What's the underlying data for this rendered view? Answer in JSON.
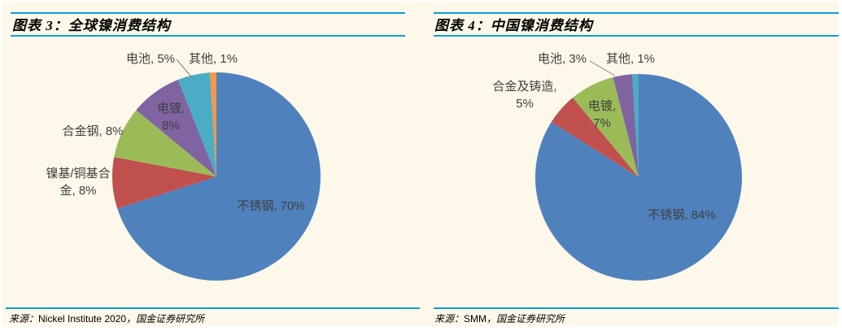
{
  "styles": {
    "background": "#FDF8E9",
    "rule_color": "#0E9BD8",
    "label_color": "#3F3F3F",
    "leader_color": "#808080"
  },
  "chart_data": [
    {
      "type": "pie",
      "title": "图表 3：全球镍消费结构",
      "categories": [
        "不锈钢",
        "镍基/铜基合金",
        "合金钢",
        "电镀",
        "电池",
        "其他"
      ],
      "values": [
        70,
        8,
        8,
        8,
        5,
        1
      ],
      "unit": "%",
      "colors": [
        "#4F81BD",
        "#C0504D",
        "#9BBB59",
        "#8064A2",
        "#4BACC6",
        "#F79646"
      ],
      "legend": "none",
      "start_angle_deg": 0,
      "direction": "clockwise",
      "data_labels": {
        "stainless_steel": "不锈钢, 70%",
        "nickel_copper_alloy_line1": "镍基/铜基合",
        "nickel_copper_alloy_line2": "金, 8%",
        "alloy_steel": "合金钢, 8%",
        "electroplating_line1": "电镀,",
        "electroplating_line2": "8%",
        "battery": "电池, 5%",
        "other": "其他, 1%"
      },
      "source_prefix": "来源：",
      "source_name": "Nickel Institute 2020",
      "source_suffix": "，国金证券研究所"
    },
    {
      "type": "pie",
      "title": "图表 4：中国镍消费结构",
      "categories": [
        "不锈钢",
        "合金及铸造",
        "电镀",
        "电池",
        "其他"
      ],
      "values": [
        84,
        5,
        7,
        3,
        1
      ],
      "unit": "%",
      "colors": [
        "#4F81BD",
        "#C0504D",
        "#9BBB59",
        "#8064A2",
        "#4BACC6"
      ],
      "legend": "none",
      "start_angle_deg": 0,
      "direction": "clockwise",
      "data_labels": {
        "stainless_steel": "不锈钢, 84%",
        "alloy_casting_line1": "合金及铸造,",
        "alloy_casting_line2": "5%",
        "electroplating_line1": "电镀,",
        "electroplating_line2": "7%",
        "battery": "电池, 3%",
        "other": "其他, 1%"
      },
      "source_prefix": "来源：",
      "source_name": "SMM",
      "source_suffix": "，国金证券研究所"
    }
  ]
}
